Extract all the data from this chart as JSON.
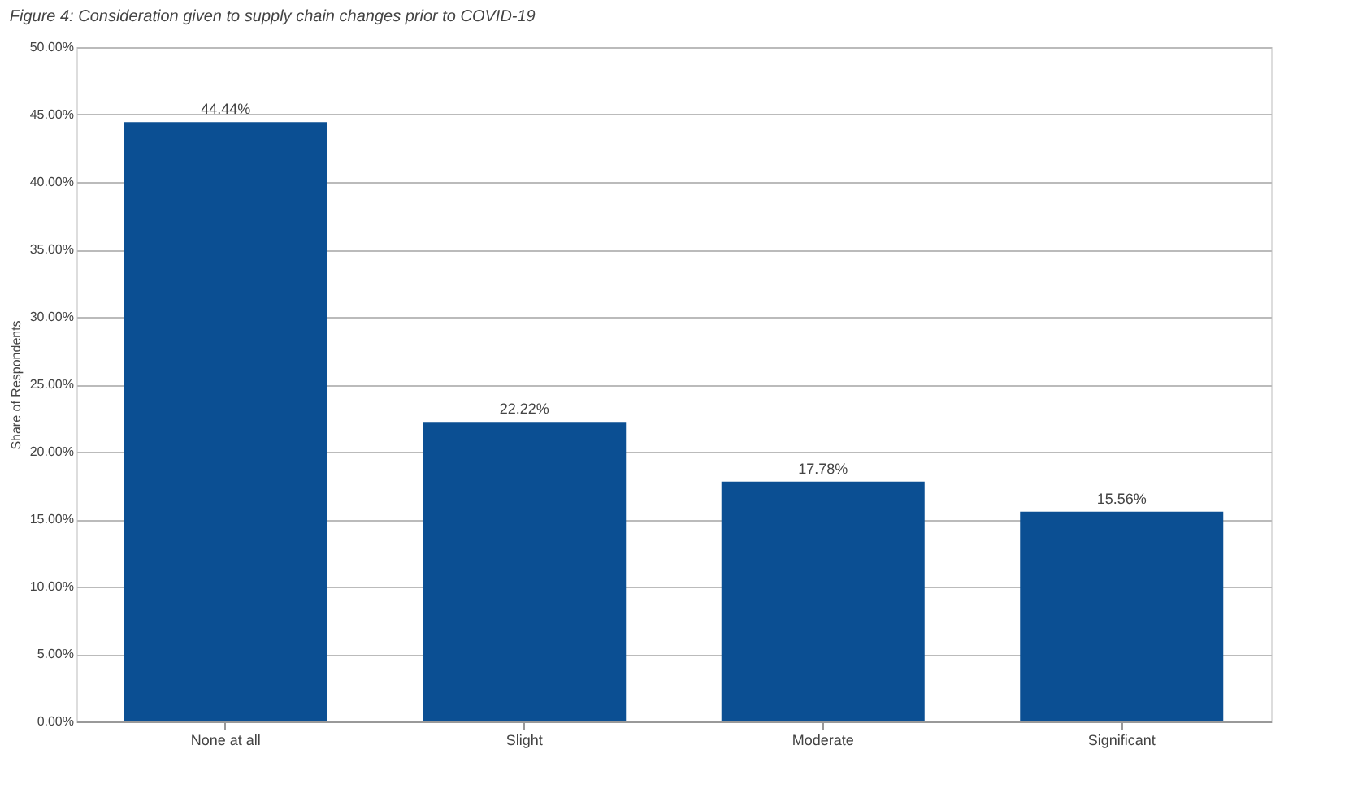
{
  "chart_data": {
    "type": "bar",
    "title": "Figure 4: Consideration given to supply chain changes prior to COVID-19",
    "ylabel": "Share of Respondents",
    "categories": [
      "None at all",
      "Slight",
      "Moderate",
      "Significant"
    ],
    "values": [
      44.44,
      22.22,
      17.78,
      15.56
    ],
    "value_labels": [
      "44.44%",
      "22.22%",
      "17.78%",
      "15.56%"
    ],
    "color": "#0b4f93",
    "ylim": [
      0,
      50
    ],
    "yticks": [
      {
        "value": 0,
        "label": "0.00%"
      },
      {
        "value": 5,
        "label": "5.00%"
      },
      {
        "value": 10,
        "label": "10.00%"
      },
      {
        "value": 15,
        "label": "15.00%"
      },
      {
        "value": 20,
        "label": "20.00%"
      },
      {
        "value": 25,
        "label": "25.00%"
      },
      {
        "value": 30,
        "label": "30.00%"
      },
      {
        "value": 35,
        "label": "35.00%"
      },
      {
        "value": 40,
        "label": "40.00%"
      },
      {
        "value": 45,
        "label": "45.00%"
      },
      {
        "value": 50,
        "label": "50.00%"
      }
    ],
    "grid": "y"
  }
}
